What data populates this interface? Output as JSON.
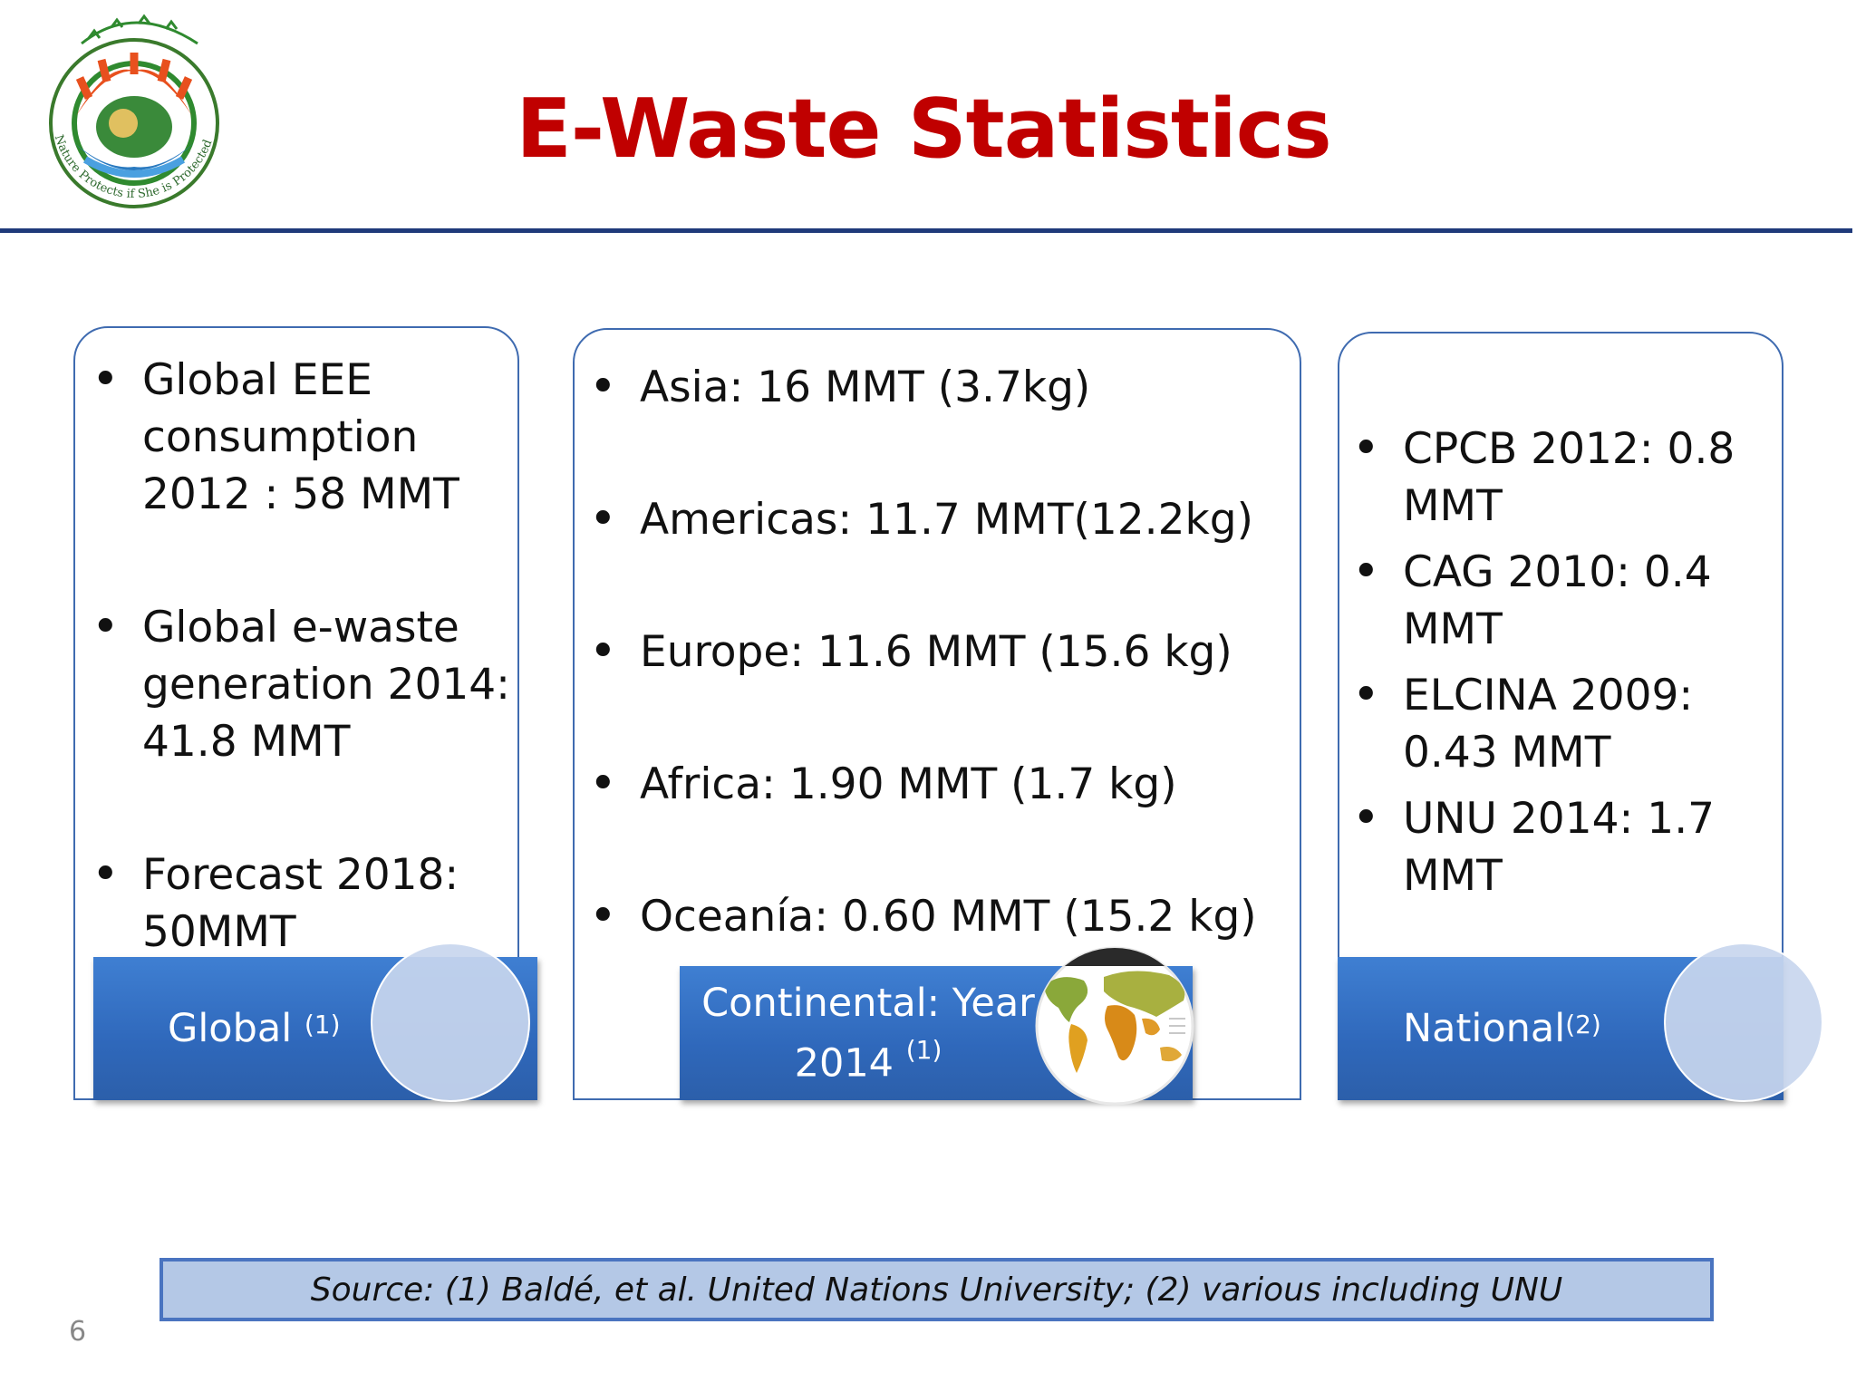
{
  "title": "E-Waste Statistics",
  "logo": {
    "name": "emblem-logo",
    "text": "Nature Protects if She is Protected"
  },
  "cards": {
    "global": {
      "items": [
        "Global EEE consumption 2012 : 58 MMT",
        "Global e-waste generation 2014: 41.8 MMT",
        "Forecast 2018: 50MMT"
      ],
      "banner_label": "Global",
      "banner_sup": "(1)"
    },
    "continental": {
      "items": [
        "Asia: 16 MMT (3.7kg)",
        "Americas: 11.7 MMT(12.2kg)",
        "Europe: 11.6 MMT (15.6 kg)",
        "Africa: 1.90 MMT (1.7 kg)",
        "Oceanía: 0.60 MMT (15.2 kg)"
      ],
      "banner_line1": "Continental: Year",
      "banner_line2": "2014",
      "banner_sup": "(1)"
    },
    "national": {
      "items": [
        "CPCB 2012: 0.8 MMT",
        "CAG 2010: 0.4 MMT",
        "ELCINA 2009: 0.43 MMT",
        "UNU 2014: 1.7 MMT"
      ],
      "banner_label": "National",
      "banner_sup": "(2)"
    }
  },
  "source": "Source: (1) Baldé, et al. United Nations University; (2) various including UNU",
  "page_number": "6",
  "colors": {
    "title": "#c00000",
    "rule": "#1f3a7a",
    "banner": "#2f68bb",
    "source_bg": "#b4c8e6"
  }
}
